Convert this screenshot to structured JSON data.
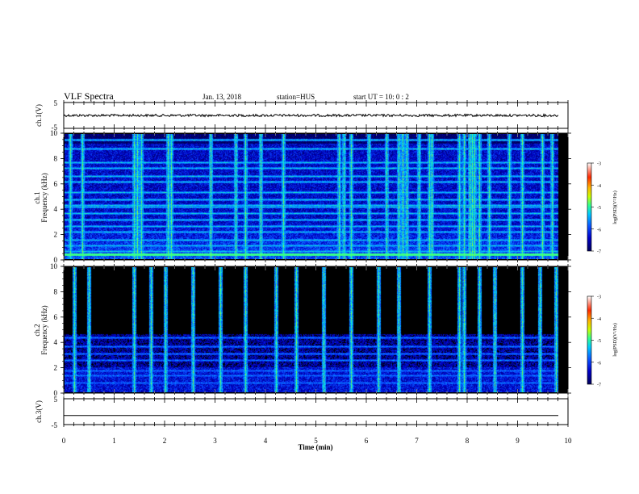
{
  "header": {
    "title": "VLF Spectra",
    "date": "Jan. 13, 2018",
    "station": "station=HUS",
    "start": "start UT =  10: 0  : 2"
  },
  "colors": {
    "background": "#000000",
    "waveform": "#000000",
    "colormap": [
      "#00005a",
      "#0000c8",
      "#0a50ff",
      "#00c8ff",
      "#30ff90",
      "#c8ff00",
      "#ffb400",
      "#ff2800",
      "#ffffff"
    ]
  },
  "chart_data": [
    {
      "type": "line",
      "name": "ch1-waveform",
      "ylabel": "ch.1(V)",
      "ylim": [
        -5,
        5
      ],
      "yticks": [
        "5",
        "-5"
      ],
      "xlim": [
        0,
        10
      ],
      "level": 0
    },
    {
      "type": "heatmap",
      "name": "ch1-spectrogram",
      "ylabel": "ch.1\nFrequency (kHz)",
      "ylim": [
        0,
        10
      ],
      "yticks": [
        "0",
        "2",
        "4",
        "6",
        "8",
        "10"
      ],
      "xlim": [
        0,
        10
      ],
      "noise_floor": -6.4,
      "bands_khz": [
        0.6,
        1.0,
        1.5,
        2.1,
        2.6,
        3.1,
        3.6,
        4.1,
        4.25,
        4.7,
        5.3,
        6.1,
        6.6,
        7.2,
        7.7,
        8.8,
        9.5
      ],
      "bursts_min": [
        0.12,
        0.35,
        1.38,
        1.45,
        1.52,
        2.05,
        2.12,
        2.9,
        3.4,
        3.6,
        3.9,
        4.35,
        5.45,
        5.55,
        5.7,
        6.05,
        6.4,
        6.65,
        6.72,
        6.8,
        7.05,
        7.25,
        7.3,
        7.85,
        7.95,
        8.05,
        8.1,
        8.15,
        8.25,
        8.45,
        8.85,
        9.1,
        9.5,
        9.7
      ]
    },
    {
      "type": "heatmap",
      "name": "ch2-spectrogram",
      "ylabel": "ch.2\nFrequency (kHz)",
      "ylim": [
        0,
        10
      ],
      "yticks": [
        "0",
        "2",
        "4",
        "6",
        "8",
        "10"
      ],
      "xlim": [
        0,
        10
      ],
      "noise_floor": -7,
      "bands_khz": [
        0.7,
        1.3,
        1.7,
        2.5,
        3.0,
        3.6,
        4.3
      ],
      "bursts_min": [
        0.2,
        0.48,
        1.38,
        1.72,
        2.0,
        2.55,
        3.1,
        3.6,
        4.2,
        4.6,
        5.15,
        5.7,
        6.25,
        6.65,
        7.25,
        7.85,
        7.95,
        8.25,
        8.55,
        9.1,
        9.45,
        9.78
      ]
    },
    {
      "type": "line",
      "name": "ch3-waveform",
      "ylabel": "ch.3(V)",
      "ylim": [
        -5,
        5
      ],
      "yticks": [
        "5",
        "-5"
      ],
      "xlim": [
        0,
        10
      ],
      "level": -1.5
    }
  ],
  "xaxis": {
    "label": "Time (min)",
    "ticks": [
      "0",
      "1",
      "2",
      "3",
      "4",
      "5",
      "6",
      "7",
      "8",
      "9",
      "10"
    ]
  },
  "colorbar": {
    "label": "log(PSD)(V²/Hz)",
    "range": [
      -7,
      -3
    ],
    "ticks": [
      "-3",
      "-4",
      "-5",
      "-6",
      "-7"
    ]
  }
}
